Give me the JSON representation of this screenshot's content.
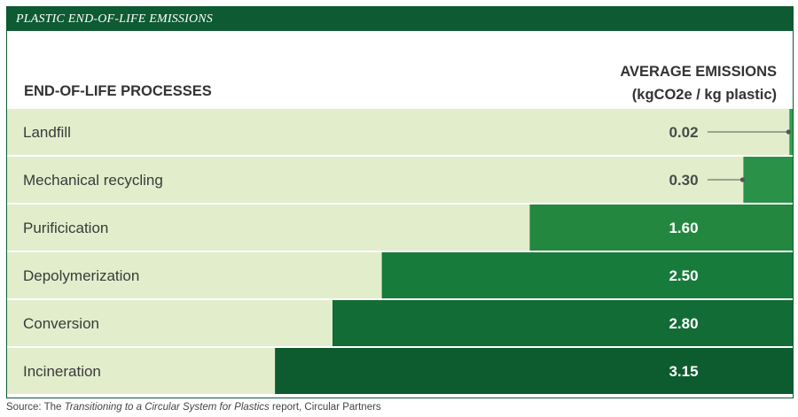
{
  "title": "PLASTIC END-OF-LIFE EMISSIONS",
  "header": {
    "left": "END-OF-LIFE PROCESSES",
    "right_line1": "AVERAGE EMISSIONS",
    "right_line2": "(kgCO2e / kg plastic)"
  },
  "source": {
    "prefix": "Source: The ",
    "italic": "Transitioning to a Circular System for Plastics",
    "suffix": " report, Circular Partners"
  },
  "colors": {
    "row_bg": "#e2edcc",
    "bar_shades": [
      "#2e9e4f",
      "#2a9149",
      "#23873f",
      "#177b3c",
      "#116c36",
      "#0d5c2f"
    ],
    "value_dark": "#4a4a4a",
    "value_light": "#ffffff"
  },
  "chart_data": {
    "type": "bar",
    "orientation": "horizontal",
    "categories": [
      "Landfill",
      "Mechanical recycling",
      "Purificication",
      "Depolymerization",
      "Conversion",
      "Incineration"
    ],
    "values": [
      0.02,
      0.3,
      1.6,
      2.5,
      2.8,
      3.15
    ],
    "value_labels": [
      "0.02",
      "0.30",
      "1.60",
      "2.50",
      "2.80",
      "3.15"
    ],
    "title": "PLASTIC END-OF-LIFE EMISSIONS",
    "xlabel": "",
    "ylabel": "",
    "xlim": [
      0,
      4.78
    ],
    "bar_direction": "right-to-left"
  }
}
